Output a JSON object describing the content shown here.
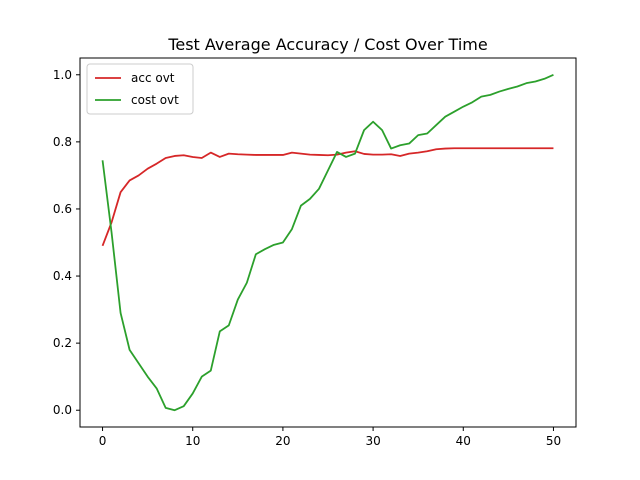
{
  "chart_data": {
    "type": "line",
    "title": "Test Average Accuracy / Cost Over Time",
    "xlabel": "",
    "ylabel": "",
    "xlim": [
      -2.5,
      52.5
    ],
    "ylim": [
      -0.05,
      1.05
    ],
    "x_ticks": [
      0,
      10,
      20,
      30,
      40,
      50
    ],
    "x_tick_labels": [
      "0",
      "10",
      "20",
      "30",
      "40",
      "50"
    ],
    "y_ticks": [
      0.0,
      0.2,
      0.4,
      0.6,
      0.8,
      1.0
    ],
    "y_tick_labels": [
      "0.0",
      "0.2",
      "0.4",
      "0.6",
      "0.8",
      "1.0"
    ],
    "grid": false,
    "legend_position": "upper left",
    "x": [
      0,
      1,
      2,
      3,
      4,
      5,
      6,
      7,
      8,
      9,
      10,
      11,
      12,
      13,
      14,
      15,
      16,
      17,
      18,
      19,
      20,
      21,
      22,
      23,
      24,
      25,
      26,
      27,
      28,
      29,
      30,
      31,
      32,
      33,
      34,
      35,
      36,
      37,
      38,
      39,
      40,
      41,
      42,
      43,
      44,
      45,
      46,
      47,
      48,
      49,
      50
    ],
    "series": [
      {
        "name": "acc ovt",
        "color": "#d62728",
        "values": [
          0.49,
          0.56,
          0.65,
          0.685,
          0.7,
          0.72,
          0.735,
          0.752,
          0.758,
          0.76,
          0.755,
          0.752,
          0.768,
          0.755,
          0.765,
          0.763,
          0.762,
          0.761,
          0.761,
          0.761,
          0.761,
          0.768,
          0.765,
          0.762,
          0.761,
          0.76,
          0.762,
          0.768,
          0.772,
          0.764,
          0.762,
          0.762,
          0.763,
          0.758,
          0.765,
          0.768,
          0.772,
          0.778,
          0.78,
          0.781,
          0.781,
          0.781,
          0.781,
          0.781,
          0.781,
          0.781,
          0.781,
          0.781,
          0.781,
          0.781,
          0.781
        ]
      },
      {
        "name": "cost ovt",
        "color": "#2ca02c",
        "values": [
          0.745,
          0.53,
          0.29,
          0.18,
          0.14,
          0.1,
          0.065,
          0.007,
          0.0,
          0.012,
          0.05,
          0.1,
          0.118,
          0.235,
          0.253,
          0.33,
          0.38,
          0.465,
          0.48,
          0.493,
          0.5,
          0.54,
          0.61,
          0.63,
          0.66,
          0.715,
          0.77,
          0.755,
          0.765,
          0.835,
          0.86,
          0.835,
          0.78,
          0.79,
          0.795,
          0.82,
          0.825,
          0.85,
          0.875,
          0.89,
          0.905,
          0.918,
          0.935,
          0.94,
          0.95,
          0.958,
          0.965,
          0.975,
          0.98,
          0.988,
          1.0
        ]
      }
    ]
  }
}
